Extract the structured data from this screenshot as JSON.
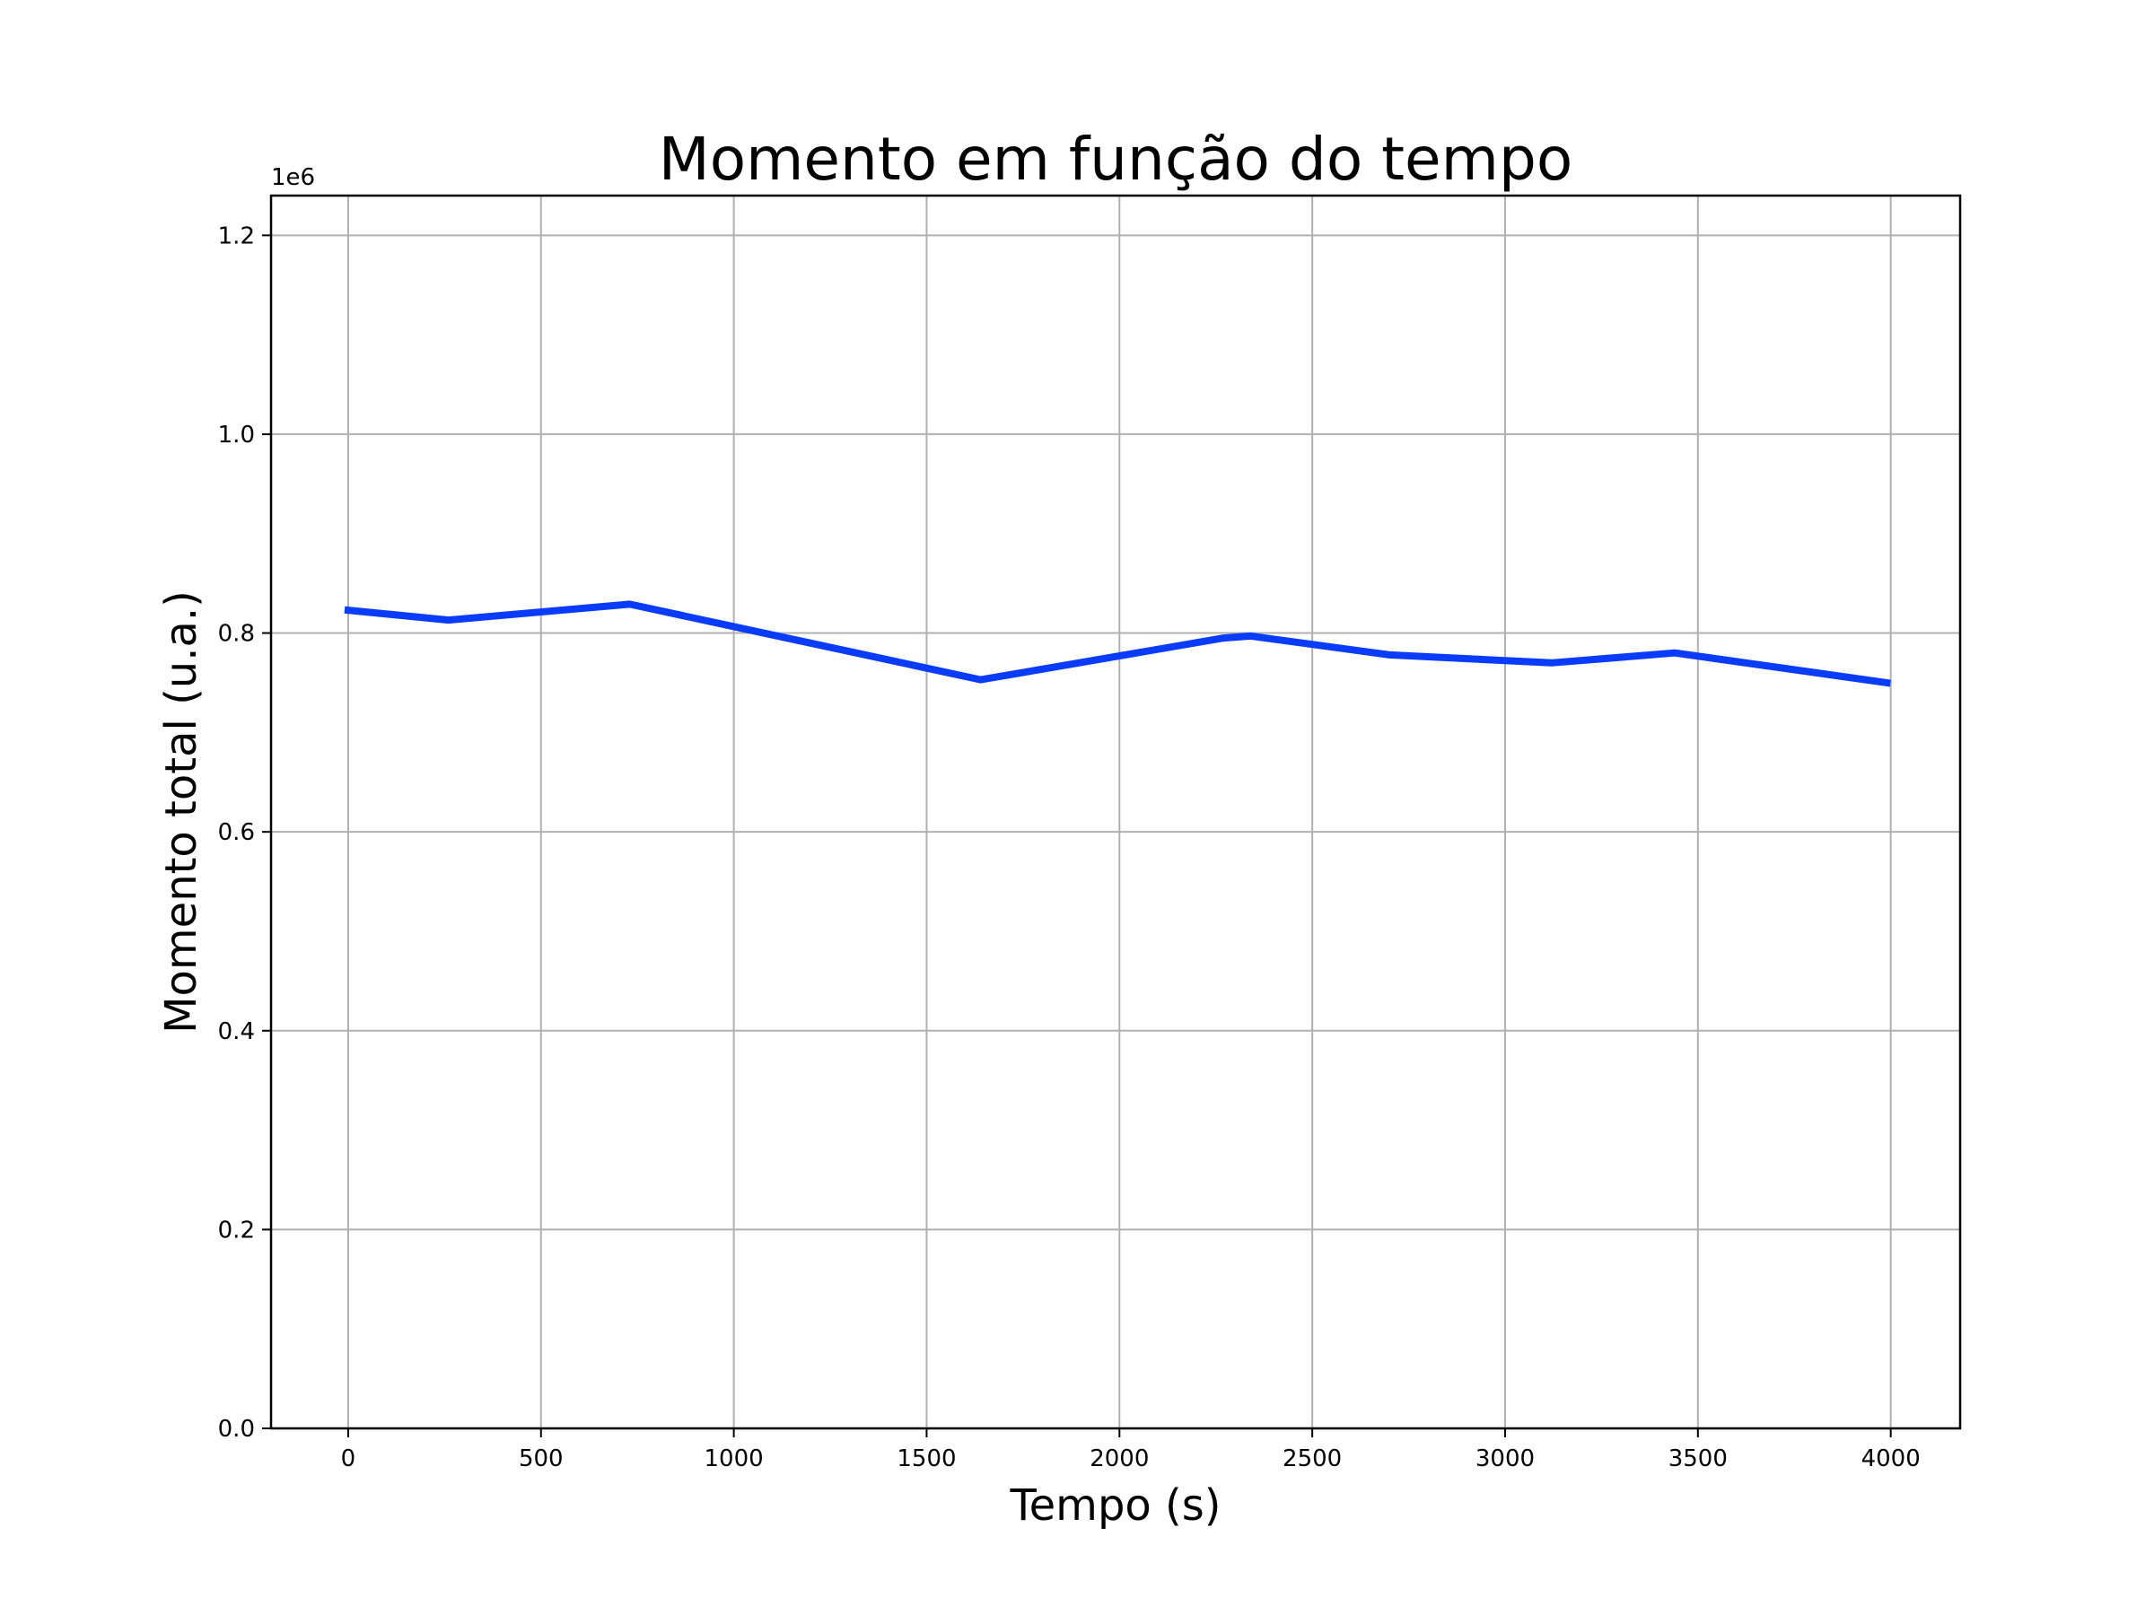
{
  "chart_data": {
    "type": "line",
    "title": "Momento em função do tempo",
    "xlabel": "Tempo (s)",
    "ylabel": "Momento total (u.a.)",
    "y_offset_label": "1e6",
    "xlim": [
      -200,
      4180
    ],
    "ylim": [
      0,
      1240000
    ],
    "x_ticks": [
      0,
      500,
      1000,
      1500,
      2000,
      2500,
      3000,
      3500,
      4000
    ],
    "x_tick_labels": [
      "0",
      "500",
      "1000",
      "1500",
      "2000",
      "2500",
      "3000",
      "3500",
      "4000"
    ],
    "y_ticks": [
      0,
      200000,
      400000,
      600000,
      800000,
      1000000,
      1200000
    ],
    "y_tick_labels": [
      "0.0",
      "0.2",
      "0.4",
      "0.6",
      "0.8",
      "1.0",
      "1.2"
    ],
    "grid": true,
    "series": [
      {
        "color": "#0a3cff",
        "x": [
          0,
          260,
          730,
          1640,
          2270,
          2340,
          2700,
          3120,
          3440,
          3990
        ],
        "y": [
          823000,
          813000,
          829000,
          753000,
          795000,
          797000,
          778000,
          770000,
          780000,
          750000
        ]
      }
    ]
  }
}
